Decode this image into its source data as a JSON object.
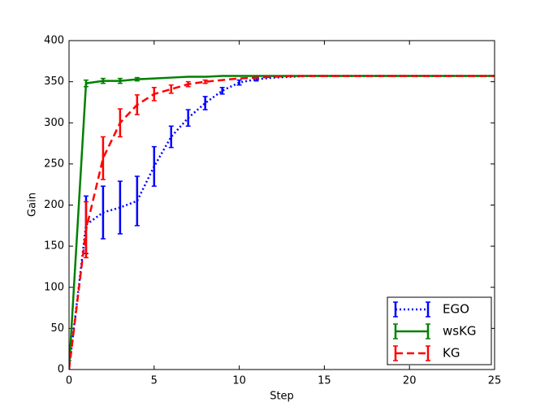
{
  "chart_data": {
    "type": "line",
    "xlabel": "Step",
    "ylabel": "Gain",
    "x": [
      0,
      1,
      2,
      3,
      4,
      5,
      6,
      7,
      8,
      9,
      10,
      11,
      12,
      13,
      14,
      15,
      16,
      17,
      18,
      19,
      20,
      21,
      22,
      23,
      24,
      25
    ],
    "xlim": [
      0,
      25
    ],
    "xticks": [
      0,
      5,
      10,
      15,
      20,
      25
    ],
    "ylim": [
      0,
      400
    ],
    "yticks": [
      0,
      50,
      100,
      150,
      200,
      250,
      300,
      350,
      400
    ],
    "legend": "lower right",
    "series": [
      {
        "name": "EGO",
        "color": "#0000ff",
        "linestyle": "dotted",
        "values": [
          0,
          176,
          191,
          197,
          205,
          247,
          283,
          306,
          324,
          339,
          349,
          353,
          355,
          356,
          357,
          357,
          357,
          357,
          357,
          357,
          357,
          357,
          357,
          357,
          357,
          357
        ],
        "errors": [
          null,
          35,
          32,
          32,
          30,
          24,
          13,
          10,
          8,
          4,
          3,
          2,
          null,
          null,
          null,
          null,
          null,
          null,
          null,
          null,
          null,
          null,
          null,
          null,
          null,
          null
        ]
      },
      {
        "name": "wsKG",
        "color": "#008000",
        "linestyle": "solid",
        "values": [
          0,
          348,
          351,
          351,
          353,
          354,
          355,
          356,
          356,
          357,
          357,
          357,
          357,
          357,
          357,
          357,
          357,
          357,
          357,
          357,
          357,
          357,
          357,
          357,
          357,
          357
        ],
        "errors": [
          null,
          4,
          3,
          3,
          2,
          null,
          null,
          null,
          null,
          null,
          null,
          null,
          null,
          null,
          null,
          null,
          null,
          null,
          null,
          null,
          null,
          null,
          null,
          null,
          null,
          null
        ]
      },
      {
        "name": "KG",
        "color": "#ff0000",
        "linestyle": "dashed",
        "values": [
          0,
          170,
          257,
          300,
          322,
          335,
          341,
          347,
          350,
          352,
          354,
          355,
          356,
          357,
          357,
          357,
          357,
          357,
          357,
          357,
          357,
          357,
          357,
          357,
          357,
          357
        ],
        "errors": [
          null,
          34,
          26,
          17,
          12,
          8,
          5,
          3,
          2,
          null,
          null,
          null,
          null,
          null,
          null,
          null,
          null,
          null,
          null,
          null,
          null,
          null,
          null,
          null,
          null,
          null
        ]
      }
    ]
  }
}
